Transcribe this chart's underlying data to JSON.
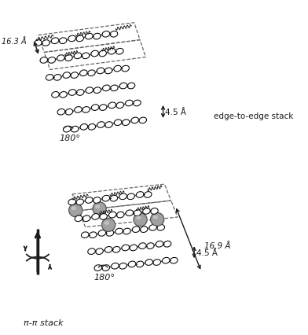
{
  "bg_color": "#ffffff",
  "line_color": "#1a1a1a",
  "gray_sphere_color": "#a0a0a0",
  "gray_sphere_edge": "#555555",
  "gray_sphere_highlight": "#d8d8d8",
  "top_diagram": {
    "title_annotation": "edge-to-edge stack",
    "dim1_label": "16.3 Å",
    "dim2_label": "4.5 Å",
    "angle_label": "180°"
  },
  "bottom_diagram": {
    "title_annotation": "π-π stack",
    "dim1_label": "16.9 Å",
    "dim2_label": "4.5 Å",
    "angle_label": "180°"
  }
}
